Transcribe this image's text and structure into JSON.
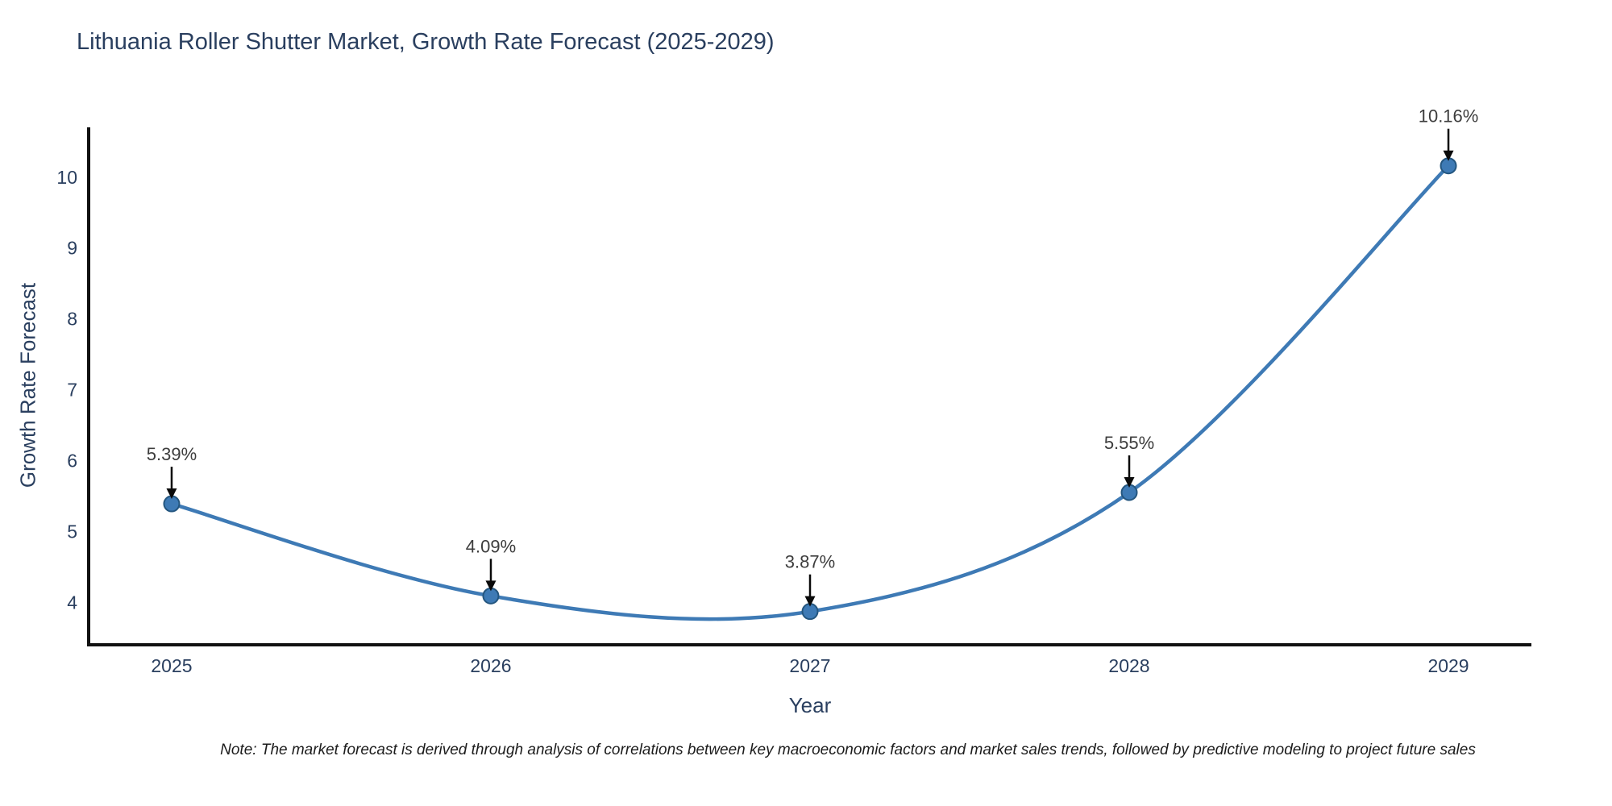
{
  "chart_data": {
    "type": "line",
    "title": "Lithuania Roller Shutter Market, Growth Rate Forecast (2025-2029)",
    "xlabel": "Year",
    "ylabel": "Growth Rate Forecast",
    "categories": [
      2025,
      2026,
      2027,
      2028,
      2029
    ],
    "series": [
      {
        "name": "Growth Rate Forecast",
        "values": [
          5.39,
          4.09,
          3.87,
          5.55,
          10.16
        ],
        "point_labels": [
          "5.39%",
          "4.09%",
          "3.87%",
          "5.55%",
          "10.16%"
        ]
      }
    ],
    "yticks": [
      4,
      5,
      6,
      7,
      8,
      9,
      10
    ],
    "xticks": [
      "2025",
      "2026",
      "2027",
      "2028",
      "2029"
    ],
    "ylim": [
      3.4,
      10.68
    ],
    "xlim": [
      2024.74,
      2029.26
    ],
    "grid": false,
    "legend": "none",
    "line_shape": "spline",
    "line_color": "#3e7ab5",
    "marker_fill": "#3e7ab5",
    "marker_edge": "#24567f",
    "axis_color": "#111111",
    "text_color": "#2a3f5f",
    "annotation_color": "#3d3d3d",
    "arrow_color": "#0a0a0a",
    "note": "Note: The market forecast is derived through analysis of correlations between key macroeconomic factors and market sales trends, followed by predictive modeling to project future sales"
  }
}
